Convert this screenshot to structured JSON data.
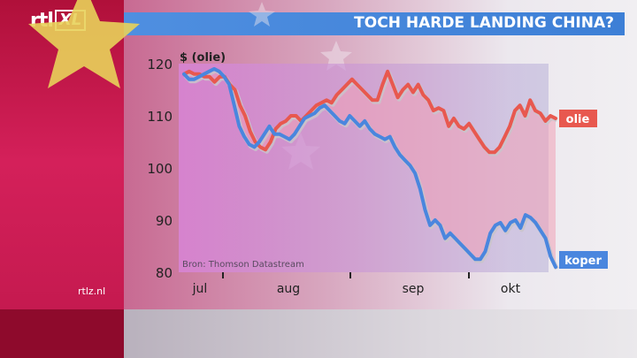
{
  "header": {
    "logo_rtl": "rtl",
    "logo_xl": "XL",
    "title": "TOCH HARDE LANDING CHINA?"
  },
  "footer": {
    "site": "rtlz.nl"
  },
  "colors": {
    "olie": "#e8584f",
    "koper": "#4a86de",
    "title_bar": "#3d7fd6"
  },
  "chart_data": {
    "type": "line",
    "ylabel": "$ (olie)",
    "ylim": [
      80,
      120
    ],
    "yticks": [
      80,
      90,
      100,
      110,
      120
    ],
    "xticks": [
      "jul",
      "aug",
      "sep",
      "okt"
    ],
    "source": "Bron: Thomson Datastream",
    "grid": false,
    "series": [
      {
        "name": "olie",
        "values": [
          118,
          118.5,
          118,
          118,
          117.5,
          117.5,
          116.5,
          117.5,
          117.5,
          116,
          115,
          112,
          110,
          107,
          105,
          104,
          103.5,
          105,
          107.5,
          108.5,
          109,
          110,
          110,
          109,
          110,
          111,
          112,
          112.5,
          113,
          112.5,
          114,
          115,
          116,
          117,
          116,
          115,
          114,
          113,
          113,
          116,
          118.5,
          116,
          113.5,
          115,
          116,
          114.5,
          116,
          114,
          113,
          111,
          111.5,
          111,
          108,
          109.5,
          108,
          107.5,
          108.5,
          107,
          105.5,
          104,
          103,
          103,
          104,
          106,
          108,
          111,
          112,
          110,
          113,
          111,
          110.5,
          109,
          110,
          109.5
        ]
      },
      {
        "name": "koper",
        "values": [
          118,
          117,
          117,
          117.5,
          118,
          118.5,
          119,
          118.5,
          117.5,
          116,
          112,
          108,
          106,
          104.5,
          104,
          105,
          106.5,
          108,
          106.5,
          106.5,
          106,
          105.5,
          106.5,
          108,
          109.5,
          110,
          110.5,
          111.5,
          112,
          111,
          110,
          109,
          108.5,
          110,
          109,
          108,
          109,
          107.5,
          106.5,
          106,
          105.5,
          106,
          104,
          102.5,
          101.5,
          100.5,
          99,
          96,
          92,
          89,
          90,
          89,
          86.5,
          87.5,
          86.5,
          85.5,
          84.5,
          83.5,
          82.5,
          82.5,
          84,
          87.5,
          89,
          89.5,
          88,
          89.5,
          90,
          88.5,
          91,
          90.5,
          89.5,
          88,
          86.5,
          83,
          81
        ]
      }
    ]
  }
}
